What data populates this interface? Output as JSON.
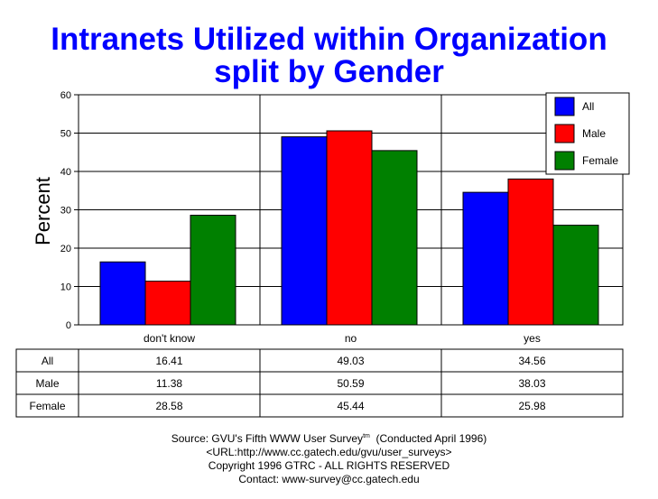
{
  "title_line1": "Intranets Utilized within Organization",
  "title_line2": "split by Gender",
  "chart_data": {
    "type": "bar",
    "title": "Intranets Utilized within Organization split by Gender",
    "ylabel": "Percent",
    "xlabel": "",
    "ylim": [
      0,
      60
    ],
    "yticks": [
      0,
      10,
      20,
      30,
      40,
      50,
      60
    ],
    "grid": true,
    "legend_position": "top-right",
    "categories": [
      "don't know",
      "no",
      "yes"
    ],
    "series": [
      {
        "name": "All",
        "color": "#0000ff",
        "values": [
          16.41,
          49.03,
          34.56
        ]
      },
      {
        "name": "Male",
        "color": "#ff0000",
        "values": [
          11.38,
          50.59,
          38.03
        ]
      },
      {
        "name": "Female",
        "color": "#008000",
        "values": [
          28.58,
          45.44,
          25.98
        ]
      }
    ],
    "table": {
      "rows": [
        {
          "label": "All",
          "values": [
            "16.41",
            "49.03",
            "34.56"
          ]
        },
        {
          "label": "Male",
          "values": [
            "11.38",
            "50.59",
            "38.03"
          ]
        },
        {
          "label": "Female",
          "values": [
            "28.58",
            "45.44",
            "25.98"
          ]
        }
      ]
    }
  },
  "footer": {
    "line1": "Source: GVU's Fifth WWW User Survey",
    "line1_sup": "tm",
    "line1_tail": "  (Conducted April 1996)",
    "line2": "<URL:http://www.cc.gatech.edu/gvu/user_surveys>",
    "line3": "Copyright 1996 GTRC -  ALL RIGHTS RESERVED",
    "line4": "Contact: www-survey@cc.gatech.edu"
  }
}
